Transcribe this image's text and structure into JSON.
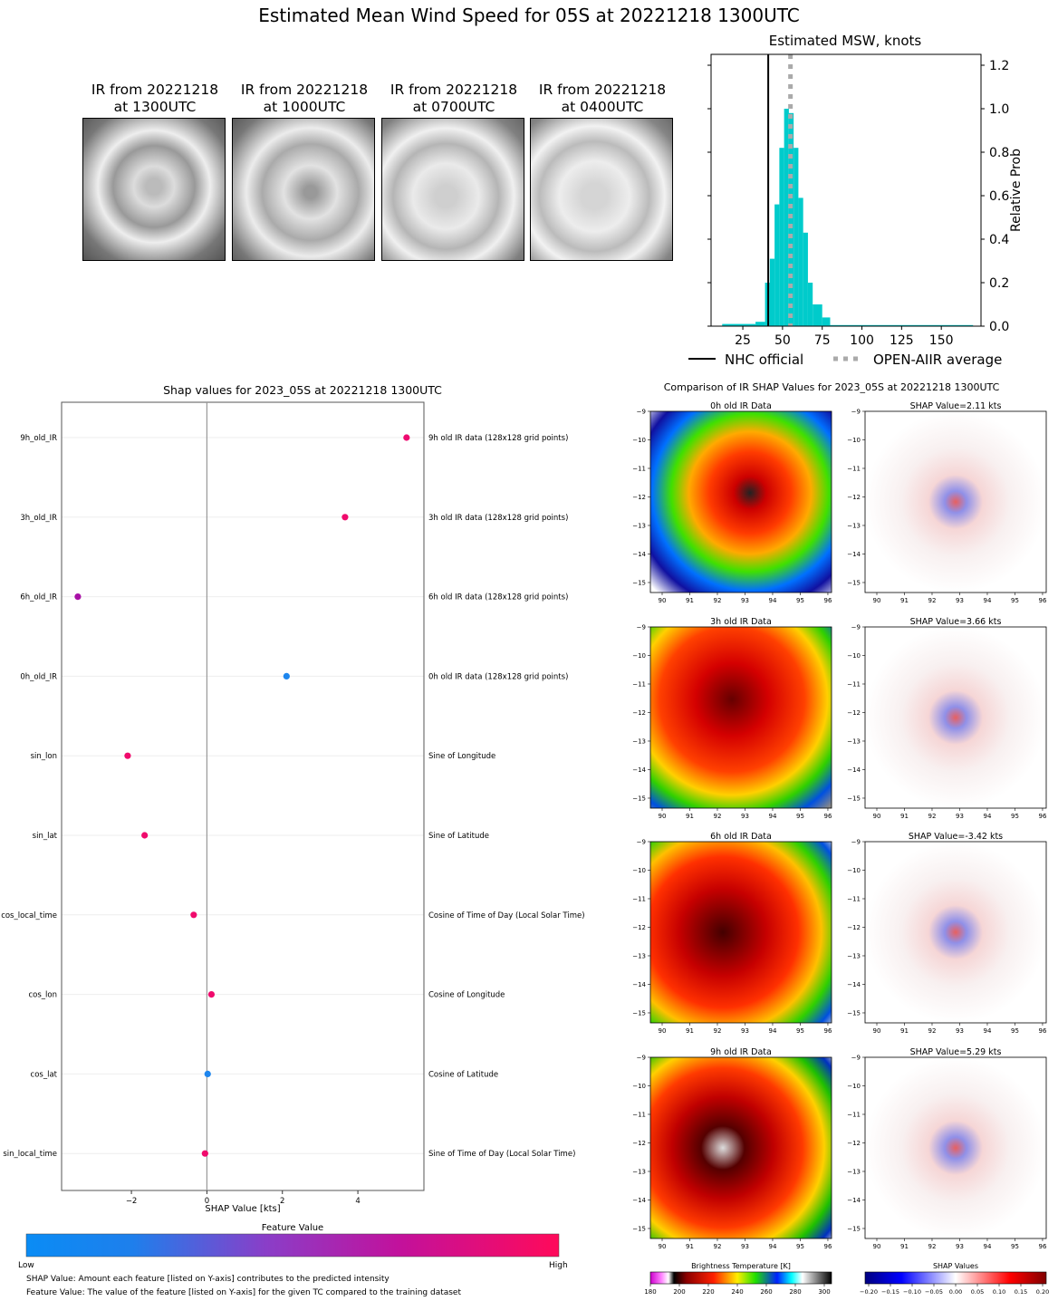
{
  "main_title": "Estimated Mean Wind Speed for 05S at 20221218 1300UTC",
  "ir_thumbnails": [
    {
      "line1": "IR from 20221218",
      "line2": "at 1300UTC"
    },
    {
      "line1": "IR from 20221218",
      "line2": "at 1000UTC"
    },
    {
      "line1": "IR from 20221218",
      "line2": "at 0700UTC"
    },
    {
      "line1": "IR from 20221218",
      "line2": "at 0400UTC"
    }
  ],
  "chart_data": [
    {
      "type": "bar",
      "title": "Estimated MSW, knots",
      "ylabel": "Relative Prob",
      "xlim": [
        5,
        175
      ],
      "ylim": [
        0,
        1.25
      ],
      "xticks": [
        25,
        50,
        75,
        100,
        125,
        150
      ],
      "yticks": [
        0.0,
        0.2,
        0.4,
        0.6,
        0.8,
        1.0,
        1.2
      ],
      "ytick_labels": [
        "0.0",
        "0.2",
        "0.4",
        "0.6",
        "0.8",
        "1.0",
        "1.2"
      ],
      "bins": [
        {
          "x0": 12,
          "x1": 33,
          "h": 0.01
        },
        {
          "x0": 33,
          "x1": 39,
          "h": 0.02
        },
        {
          "x0": 39,
          "x1": 42,
          "h": 0.2
        },
        {
          "x0": 42,
          "x1": 45,
          "h": 0.31
        },
        {
          "x0": 45,
          "x1": 48,
          "h": 0.56
        },
        {
          "x0": 48,
          "x1": 51,
          "h": 0.82
        },
        {
          "x0": 51,
          "x1": 54,
          "h": 1.0
        },
        {
          "x0": 54,
          "x1": 57,
          "h": 0.98
        },
        {
          "x0": 57,
          "x1": 60,
          "h": 0.82
        },
        {
          "x0": 60,
          "x1": 63,
          "h": 0.59
        },
        {
          "x0": 63,
          "x1": 66,
          "h": 0.43
        },
        {
          "x0": 66,
          "x1": 69,
          "h": 0.2
        },
        {
          "x0": 69,
          "x1": 75,
          "h": 0.1
        },
        {
          "x0": 75,
          "x1": 80,
          "h": 0.04
        },
        {
          "x0": 80,
          "x1": 170,
          "h": 0.005
        }
      ],
      "nhc_official": 41,
      "open_aiir_average": 55,
      "legend": [
        {
          "label": "NHC official"
        },
        {
          "label": "OPEN-AIIR average"
        }
      ]
    },
    {
      "type": "scatter",
      "title": "Shap values for 2023_05S at 20221218 1300UTC",
      "xlabel": "SHAP Value [kts]",
      "xlim": [
        -3.85,
        5.75
      ],
      "xticks": [
        -2,
        0,
        2,
        4
      ],
      "xtick_labels": [
        "−2",
        "0",
        "2",
        "4"
      ],
      "features": [
        {
          "name": "9h_old_IR",
          "desc": "9h old IR data (128x128 grid points)",
          "shap": 5.29,
          "color": "#ee0a70"
        },
        {
          "name": "3h_old_IR",
          "desc": "3h old IR data (128x128 grid points)",
          "shap": 3.66,
          "color": "#f00a6c"
        },
        {
          "name": "6h_old_IR",
          "desc": "6h old IR data (128x128 grid points)",
          "shap": -3.42,
          "color": "#a810a6"
        },
        {
          "name": "0h_old_IR",
          "desc": "0h old IR data (128x128 grid points)",
          "shap": 2.11,
          "color": "#1e86ee"
        },
        {
          "name": "sin_lon",
          "desc": "Sine of Longitude",
          "shap": -2.1,
          "color": "#f00a6c"
        },
        {
          "name": "sin_lat",
          "desc": "Sine of Latitude",
          "shap": -1.65,
          "color": "#f00a6c"
        },
        {
          "name": "cos_local_time",
          "desc": "Cosine of Time of Day (Local Solar Time)",
          "shap": -0.35,
          "color": "#f00a6c"
        },
        {
          "name": "cos_lon",
          "desc": "Cosine of Longitude",
          "shap": 0.12,
          "color": "#f00a6c"
        },
        {
          "name": "cos_lat",
          "desc": "Cosine of Latitude",
          "shap": 0.02,
          "color": "#1e86ee"
        },
        {
          "name": "sin_local_time",
          "desc": "Sine of Time of Day (Local Solar Time)",
          "shap": -0.05,
          "color": "#f00a6c"
        }
      ],
      "colorbar": {
        "title": "Feature Value",
        "low": "Low",
        "high": "High"
      },
      "notes": [
        "SHAP Value: Amount each feature [listed on Y-axis] contributes to the predicted intensity",
        "Feature Value: The value of the feature [listed on Y-axis] for the given TC compared to the training dataset"
      ]
    },
    {
      "type": "heatmap",
      "title": "Comparison of IR SHAP Values for 2023_05S at 20221218 1300UTC",
      "xticks": [
        "90",
        "91",
        "92",
        "93",
        "94",
        "95",
        "96"
      ],
      "yticks": [
        "−9",
        "−10",
        "−11",
        "−12",
        "−13",
        "−14",
        "−15"
      ],
      "rows": [
        {
          "ir_title": "0h old IR Data",
          "shap_title": "SHAP Value=2.11 kts"
        },
        {
          "ir_title": "3h old IR Data",
          "shap_title": "SHAP Value=3.66 kts"
        },
        {
          "ir_title": "6h old IR Data",
          "shap_title": "SHAP Value=-3.42 kts"
        },
        {
          "ir_title": "9h old IR Data",
          "shap_title": "SHAP Value=5.29 kts"
        }
      ],
      "bt_colorbar": {
        "title": "Brightness Temperature [K]",
        "ticks": [
          "180",
          "200",
          "220",
          "240",
          "260",
          "280",
          "300"
        ]
      },
      "shap_colorbar": {
        "title": "SHAP Values",
        "ticks": [
          "−0.20",
          "−0.15",
          "−0.10",
          "−0.05",
          "0.00",
          "0.05",
          "0.10",
          "0.15",
          "0.20"
        ]
      }
    }
  ]
}
